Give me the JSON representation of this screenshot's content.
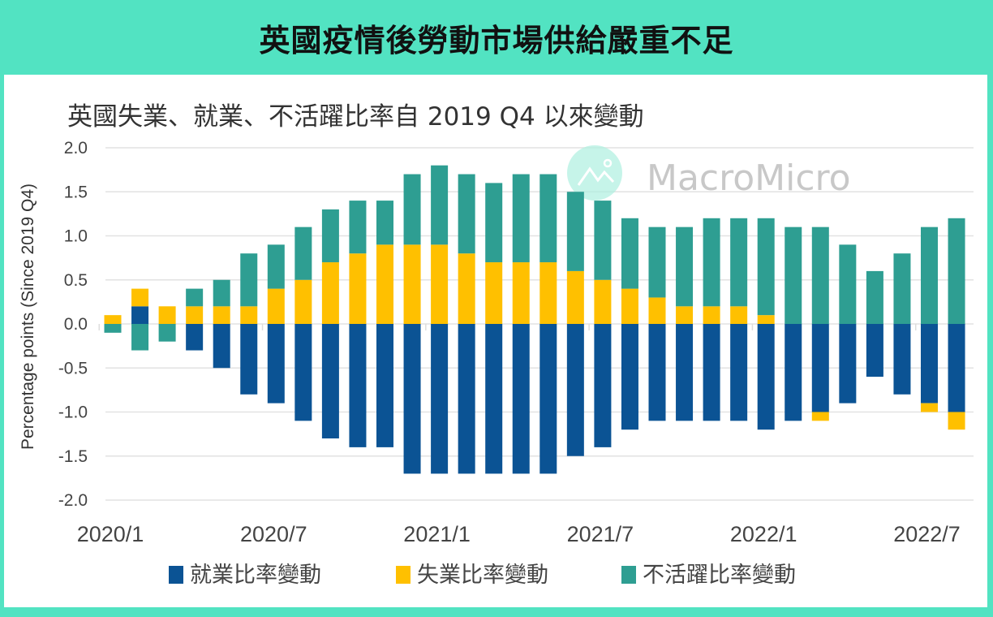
{
  "header": {
    "title": "英國疫情後勞動市場供給嚴重不足"
  },
  "watermark": {
    "text": "MacroMicro"
  },
  "chart_data": {
    "type": "bar",
    "stacked": true,
    "title": "英國失業、就業、不活躍比率自 2019 Q4 以來變動",
    "xlabel": "",
    "ylabel": "Percentage points (Since 2019 Q4)",
    "ylim": [
      -2.0,
      2.0
    ],
    "yticks": [
      "2.0",
      "1.5",
      "1.0",
      "0.5",
      "0.0",
      "-0.5",
      "-1.0",
      "-1.5",
      "-2.0"
    ],
    "grid": true,
    "legend_position": "bottom",
    "categories": [
      "2020/1",
      "2020/2",
      "2020/3",
      "2020/4",
      "2020/5",
      "2020/6",
      "2020/7",
      "2020/8",
      "2020/9",
      "2020/10",
      "2020/11",
      "2020/12",
      "2021/1",
      "2021/2",
      "2021/3",
      "2021/4",
      "2021/5",
      "2021/6",
      "2021/7",
      "2021/8",
      "2021/9",
      "2021/10",
      "2021/11",
      "2021/12",
      "2022/1",
      "2022/2",
      "2022/3",
      "2022/4",
      "2022/5",
      "2022/6",
      "2022/7",
      "2022/8"
    ],
    "xtick_labels": [
      {
        "index": 0,
        "label": "2020/1"
      },
      {
        "index": 6,
        "label": "2020/7"
      },
      {
        "index": 12,
        "label": "2021/1"
      },
      {
        "index": 18,
        "label": "2021/7"
      },
      {
        "index": 24,
        "label": "2022/1"
      },
      {
        "index": 30,
        "label": "2022/7"
      }
    ],
    "series": [
      {
        "name": "就業比率變動",
        "color": "#0b5394",
        "values": [
          0,
          0.2,
          0,
          -0.3,
          -0.5,
          -0.8,
          -0.9,
          -1.1,
          -1.3,
          -1.4,
          -1.4,
          -1.7,
          -1.7,
          -1.7,
          -1.7,
          -1.7,
          -1.7,
          -1.5,
          -1.4,
          -1.2,
          -1.1,
          -1.1,
          -1.1,
          -1.1,
          -1.2,
          -1.1,
          -1.0,
          -0.9,
          -0.6,
          -0.8,
          -0.9,
          -1.0
        ]
      },
      {
        "name": "失業比率變動",
        "color": "#ffc000",
        "values": [
          0.1,
          0.2,
          0.2,
          0.2,
          0.2,
          0.2,
          0.4,
          0.5,
          0.7,
          0.8,
          0.9,
          0.9,
          0.9,
          0.8,
          0.7,
          0.7,
          0.7,
          0.6,
          0.5,
          0.4,
          0.3,
          0.2,
          0.2,
          0.2,
          0.1,
          0,
          -0.1,
          0,
          0,
          0,
          -0.1,
          -0.2
        ]
      },
      {
        "name": "不活躍比率變動",
        "color": "#2e9e92",
        "values": [
          -0.1,
          -0.3,
          -0.2,
          0.2,
          0.3,
          0.6,
          0.5,
          0.6,
          0.6,
          0.6,
          0.5,
          0.8,
          0.9,
          0.9,
          0.9,
          1.0,
          1.0,
          0.9,
          0.9,
          0.8,
          0.8,
          0.9,
          1.0,
          1.0,
          1.1,
          1.1,
          1.1,
          0.9,
          0.6,
          0.8,
          1.1,
          1.2
        ]
      }
    ]
  }
}
